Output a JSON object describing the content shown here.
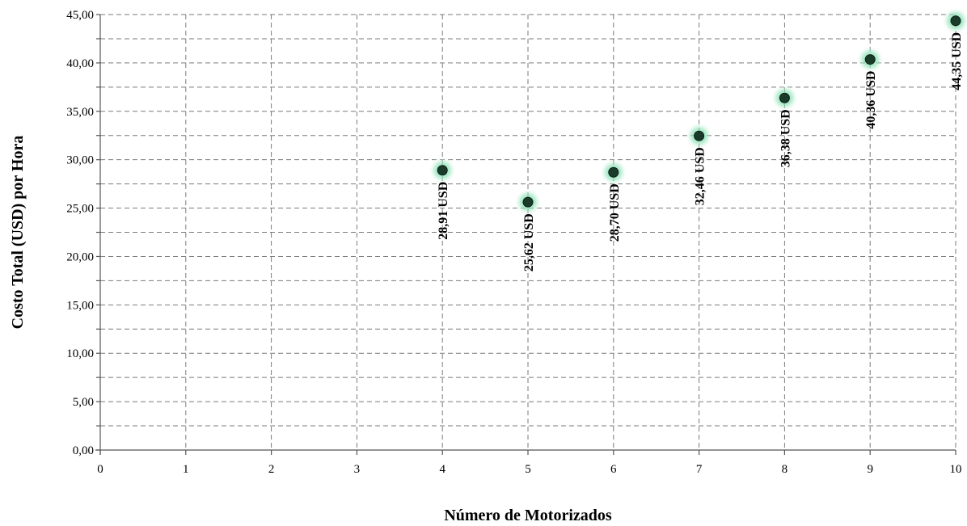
{
  "chart_data": {
    "type": "scatter",
    "title": "",
    "xlabel": "Número de Motorizados",
    "ylabel": "Costo Total (USD) por Hora",
    "xlim": [
      0,
      10
    ],
    "ylim": [
      0,
      45
    ],
    "x_ticks": [
      "0",
      "1",
      "2",
      "3",
      "4",
      "5",
      "6",
      "7",
      "8",
      "9",
      "10"
    ],
    "y_ticks": [
      "0,00",
      "5,00",
      "10,00",
      "15,00",
      "20,00",
      "25,00",
      "30,00",
      "35,00",
      "40,00",
      "45,00"
    ],
    "grid": true,
    "legend": "none",
    "marker_color": "#1b3b2a",
    "glow_color": "#5fd39a",
    "points": [
      {
        "x": 4,
        "y": 28.91,
        "label": "28,91 USD"
      },
      {
        "x": 5,
        "y": 25.62,
        "label": "25,62 USD"
      },
      {
        "x": 6,
        "y": 28.7,
        "label": "28,70 USD"
      },
      {
        "x": 7,
        "y": 32.46,
        "label": "32,46 USD"
      },
      {
        "x": 8,
        "y": 36.38,
        "label": "36,38 USD"
      },
      {
        "x": 9,
        "y": 40.36,
        "label": "40,36 USD"
      },
      {
        "x": 10,
        "y": 44.35,
        "label": "44,35 USD"
      }
    ]
  }
}
